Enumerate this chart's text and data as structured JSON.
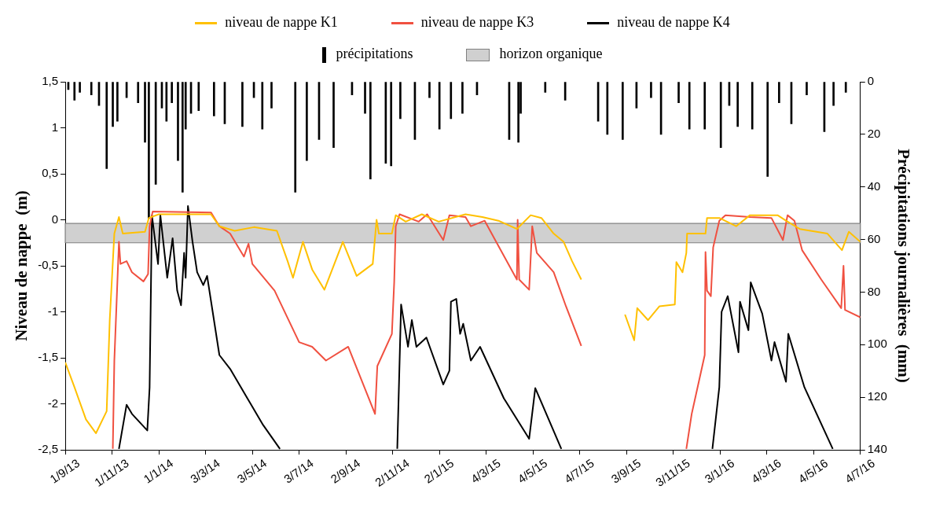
{
  "chart_data": {
    "type": "line",
    "ylabel": "Niveau de nappe  (m)",
    "y2label": "Précipitations journalières  (mm)",
    "xlim": [
      "2013-09-01",
      "2016-07-04"
    ],
    "xticks": [
      {
        "value": "2013-09-01",
        "label": "1/9/13"
      },
      {
        "value": "2013-11-01",
        "label": "1/11/13"
      },
      {
        "value": "2014-01-01",
        "label": "1/1/14"
      },
      {
        "value": "2014-03-03",
        "label": "3/3/14"
      },
      {
        "value": "2014-05-03",
        "label": "3/5/14"
      },
      {
        "value": "2014-07-03",
        "label": "3/7/14"
      },
      {
        "value": "2014-09-02",
        "label": "2/9/14"
      },
      {
        "value": "2014-11-02",
        "label": "2/11/14"
      },
      {
        "value": "2015-01-02",
        "label": "2/1/15"
      },
      {
        "value": "2015-03-04",
        "label": "4/3/15"
      },
      {
        "value": "2015-05-04",
        "label": "4/5/15"
      },
      {
        "value": "2015-07-04",
        "label": "4/7/15"
      },
      {
        "value": "2015-09-03",
        "label": "3/9/15"
      },
      {
        "value": "2015-11-03",
        "label": "3/11/15"
      },
      {
        "value": "2016-01-03",
        "label": "3/1/16"
      },
      {
        "value": "2016-03-04",
        "label": "4/3/16"
      },
      {
        "value": "2016-05-04",
        "label": "4/5/16"
      },
      {
        "value": "2016-07-04",
        "label": "4/7/16"
      }
    ],
    "ylim": [
      -2.5,
      1.5
    ],
    "yticks": [
      {
        "value": -2.5,
        "label": "-2,5"
      },
      {
        "value": -2,
        "label": "-2"
      },
      {
        "value": -1.5,
        "label": "-1,5"
      },
      {
        "value": -1,
        "label": "-1"
      },
      {
        "value": -0.5,
        "label": "-0,5"
      },
      {
        "value": 0,
        "label": "0"
      },
      {
        "value": 0.5,
        "label": "0,5"
      },
      {
        "value": 1,
        "label": "1"
      },
      {
        "value": 1.5,
        "label": "1,5"
      }
    ],
    "y2lim": [
      140,
      0
    ],
    "y2ticks": [
      0,
      20,
      40,
      60,
      80,
      100,
      120,
      140
    ],
    "grid": false,
    "legend": "top",
    "bands": [
      {
        "axis": "y",
        "from": -0.25,
        "to": -0.04,
        "label": "horizon organique",
        "color": "#d0d0d0"
      }
    ],
    "series": [
      {
        "name": "niveau de nappe K1",
        "color": "#ffc000",
        "x": [
          "2013-09-01",
          "2013-09-13",
          "2013-09-28",
          "2013-10-11",
          "2013-10-25",
          "2013-10-29",
          "2013-11-04",
          "2013-11-10",
          "2013-11-15",
          "2013-12-14",
          "2013-12-19",
          "2014-01-01",
          "2014-03-10",
          "2014-03-21",
          "2014-04-10",
          "2014-05-05",
          "2014-06-04",
          "2014-06-18",
          "2014-06-25",
          "2014-07-08",
          "2014-07-20",
          "2014-08-05",
          "2014-08-29",
          "2014-09-16",
          "2014-10-07",
          "2014-10-12",
          "2014-10-15",
          "2014-11-01",
          "2014-11-06",
          "2014-11-19",
          "2014-12-10",
          "2015-01-01",
          "2015-02-05",
          "2015-02-27",
          "2015-03-20",
          "2015-04-13",
          "2015-05-01",
          "2015-05-15",
          "2015-05-31",
          "2015-06-13",
          "2015-06-24",
          "2015-07-06",
          "2015-08-05",
          "2015-09-01",
          "2015-09-13",
          "2015-09-17",
          "2015-10-01",
          "2015-10-16",
          "2015-11-05",
          "2015-11-07",
          "2015-11-15",
          "2015-11-20",
          "2015-11-21",
          "2015-12-15",
          "2015-12-17",
          "2016-01-02",
          "2016-01-24",
          "2016-02-11",
          "2016-03-18",
          "2016-03-29",
          "2016-04-16",
          "2016-05-22",
          "2016-06-10",
          "2016-06-19",
          "2016-07-04"
        ],
        "values": [
          -1.55,
          -1.82,
          -2.17,
          -2.32,
          -2.08,
          -1.09,
          -0.15,
          0.03,
          -0.15,
          -0.13,
          0.02,
          0.06,
          0.06,
          -0.07,
          -0.12,
          -0.08,
          -0.12,
          -0.45,
          -0.63,
          -0.24,
          -0.54,
          -0.76,
          -0.24,
          -0.61,
          -0.48,
          0.0,
          -0.15,
          -0.15,
          0.05,
          -0.02,
          0.06,
          -0.02,
          0.06,
          0.03,
          -0.01,
          -0.1,
          0.05,
          0.02,
          -0.15,
          -0.24,
          -0.45,
          -0.65,
          null,
          -1.03,
          -1.31,
          -0.96,
          -1.09,
          -0.94,
          -0.92,
          -0.46,
          -0.57,
          -0.36,
          -0.15,
          -0.15,
          0.02,
          0.02,
          -0.07,
          0.05,
          0.05,
          -0.01,
          -0.1,
          -0.15,
          -0.33,
          -0.13,
          -0.24
        ]
      },
      {
        "name": "niveau de nappe K3",
        "color": "#f05040",
        "x": [
          "2013-11-02",
          "2013-11-04",
          "2013-11-10",
          "2013-11-12",
          "2013-11-20",
          "2013-11-27",
          "2013-12-12",
          "2013-12-18",
          "2013-12-20",
          "2013-12-24",
          "2014-03-10",
          "2014-03-21",
          "2014-04-04",
          "2014-04-22",
          "2014-04-28",
          "2014-05-03",
          "2014-06-01",
          "2014-07-03",
          "2014-07-20",
          "2014-08-07",
          "2014-09-05",
          "2014-10-10",
          "2014-10-13",
          "2014-11-01",
          "2014-11-04",
          "2014-11-06",
          "2014-11-11",
          "2014-12-06",
          "2014-12-17",
          "2015-01-07",
          "2015-01-15",
          "2015-02-05",
          "2015-02-12",
          "2015-03-02",
          "2015-03-17",
          "2015-04-13",
          "2015-04-14",
          "2015-04-16",
          "2015-04-29",
          "2015-05-03",
          "2015-05-09",
          "2015-05-31",
          "2015-06-16",
          "2015-07-06",
          "2015-09-15",
          "2015-11-20",
          "2015-11-27",
          "2015-12-14",
          "2015-12-15",
          "2015-12-17",
          "2015-12-22",
          "2015-12-25",
          "2016-01-02",
          "2016-01-10",
          "2016-02-11",
          "2016-03-10",
          "2016-03-25",
          "2016-03-31",
          "2016-04-09",
          "2016-04-19",
          "2016-05-14",
          "2016-06-09",
          "2016-06-12",
          "2016-06-14",
          "2016-07-04"
        ],
        "values": [
          -2.49,
          -1.53,
          -0.24,
          -0.48,
          -0.45,
          -0.57,
          -0.67,
          -0.59,
          -0.07,
          0.09,
          0.08,
          -0.07,
          -0.15,
          -0.4,
          -0.26,
          -0.48,
          -0.77,
          -1.33,
          -1.38,
          -1.53,
          -1.38,
          -2.11,
          -1.59,
          -1.24,
          -0.68,
          -0.07,
          0.06,
          -0.02,
          0.06,
          -0.22,
          0.05,
          0.03,
          -0.07,
          -0.01,
          -0.24,
          -0.65,
          0.0,
          -0.65,
          -0.76,
          -0.07,
          -0.36,
          -0.57,
          -0.94,
          -1.37,
          null,
          -2.49,
          -2.11,
          -1.47,
          -0.35,
          -0.77,
          -0.83,
          -0.3,
          -0.01,
          0.05,
          0.03,
          0.02,
          -0.22,
          0.05,
          -0.01,
          -0.33,
          -0.65,
          -0.96,
          -0.5,
          -0.98,
          -1.06
        ]
      },
      {
        "name": "niveau de nappe K4",
        "color": "#000000",
        "x": [
          "2013-11-10",
          "2013-11-20",
          "2013-11-27",
          "2013-12-17",
          "2013-12-20",
          "2013-12-23",
          "2013-12-31",
          "2014-01-03",
          "2014-01-12",
          "2014-01-19",
          "2014-01-25",
          "2014-01-30",
          "2014-02-03",
          "2014-02-05",
          "2014-02-08",
          "2014-02-14",
          "2014-02-20",
          "2014-02-28",
          "2014-03-05",
          "2014-03-21",
          "2014-04-04",
          "2014-04-30",
          "2014-05-17",
          "2014-06-08",
          "2014-09-01",
          "2014-11-08",
          "2014-11-13",
          "2014-11-22",
          "2014-11-27",
          "2014-12-03",
          "2014-12-16",
          "2015-01-07",
          "2015-01-15",
          "2015-01-17",
          "2015-01-24",
          "2015-01-29",
          "2015-02-02",
          "2015-02-12",
          "2015-02-24",
          "2015-03-27",
          "2015-04-29",
          "2015-05-07",
          "2015-06-10",
          "2015-09-01",
          "2015-12-24",
          "2016-01-02",
          "2016-01-05",
          "2016-01-13",
          "2016-01-27",
          "2016-01-29",
          "2016-02-09",
          "2016-02-12",
          "2016-02-27",
          "2016-03-10",
          "2016-03-14",
          "2016-03-29",
          "2016-04-01",
          "2016-04-22",
          "2016-05-29"
        ],
        "values": [
          -2.49,
          -2.01,
          -2.11,
          -2.29,
          -1.82,
          0.05,
          -0.48,
          0.05,
          -0.63,
          -0.2,
          -0.77,
          -0.93,
          -0.36,
          -0.63,
          0.15,
          -0.24,
          -0.57,
          -0.71,
          -0.61,
          -1.47,
          -1.62,
          -1.99,
          -2.23,
          -2.49,
          null,
          -2.49,
          -0.92,
          -1.38,
          -1.09,
          -1.38,
          -1.28,
          -1.79,
          -1.64,
          -0.89,
          -0.86,
          -1.24,
          -1.13,
          -1.53,
          -1.38,
          -1.94,
          -2.38,
          -1.83,
          -2.49,
          null,
          -2.49,
          -1.82,
          -1.0,
          -0.83,
          -1.44,
          -0.89,
          -1.2,
          -0.68,
          -1.02,
          -1.53,
          -1.33,
          -1.76,
          -1.24,
          -1.82,
          -2.49
        ]
      },
      {
        "name": "précipitations",
        "type": "bar",
        "axis": "y2",
        "color": "#000000",
        "x": [
          "2013-09-05",
          "2013-09-13",
          "2013-09-20",
          "2013-10-05",
          "2013-10-15",
          "2013-10-25",
          "2013-11-02",
          "2013-11-08",
          "2013-11-20",
          "2013-12-05",
          "2013-12-14",
          "2013-12-19",
          "2013-12-28",
          "2014-01-05",
          "2014-01-11",
          "2014-01-18",
          "2014-01-26",
          "2014-02-01",
          "2014-02-05",
          "2014-02-12",
          "2014-02-22",
          "2014-03-14",
          "2014-03-28",
          "2014-04-20",
          "2014-05-05",
          "2014-05-16",
          "2014-05-28",
          "2014-06-28",
          "2014-07-13",
          "2014-07-29",
          "2014-08-17",
          "2014-09-10",
          "2014-09-27",
          "2014-10-04",
          "2014-10-24",
          "2014-10-31",
          "2014-11-12",
          "2014-12-01",
          "2014-12-20",
          "2015-01-02",
          "2015-01-17",
          "2015-02-01",
          "2015-02-20",
          "2015-04-03",
          "2015-04-15",
          "2015-04-18",
          "2015-05-20",
          "2015-06-15",
          "2015-07-28",
          "2015-08-09",
          "2015-08-29",
          "2015-09-16",
          "2015-10-05",
          "2015-10-18",
          "2015-11-10",
          "2015-11-24",
          "2015-12-14",
          "2016-01-04",
          "2016-01-15",
          "2016-01-26",
          "2016-02-14",
          "2016-03-05",
          "2016-03-20",
          "2016-04-05",
          "2016-04-25",
          "2016-05-18",
          "2016-05-30",
          "2016-06-15"
        ],
        "values": [
          3,
          7,
          4,
          5,
          9,
          33,
          17,
          15,
          6,
          8,
          23,
          52,
          39,
          10,
          15,
          8,
          30,
          42,
          18,
          12,
          11,
          13,
          16,
          17,
          6,
          18,
          10,
          42,
          30,
          22,
          25,
          5,
          12,
          37,
          31,
          32,
          14,
          22,
          6,
          18,
          14,
          12,
          5,
          22,
          23,
          12,
          4,
          7,
          15,
          20,
          22,
          10,
          6,
          20,
          8,
          18,
          18,
          25,
          9,
          17,
          18,
          36,
          8,
          16,
          5,
          19,
          9,
          4
        ]
      }
    ]
  }
}
